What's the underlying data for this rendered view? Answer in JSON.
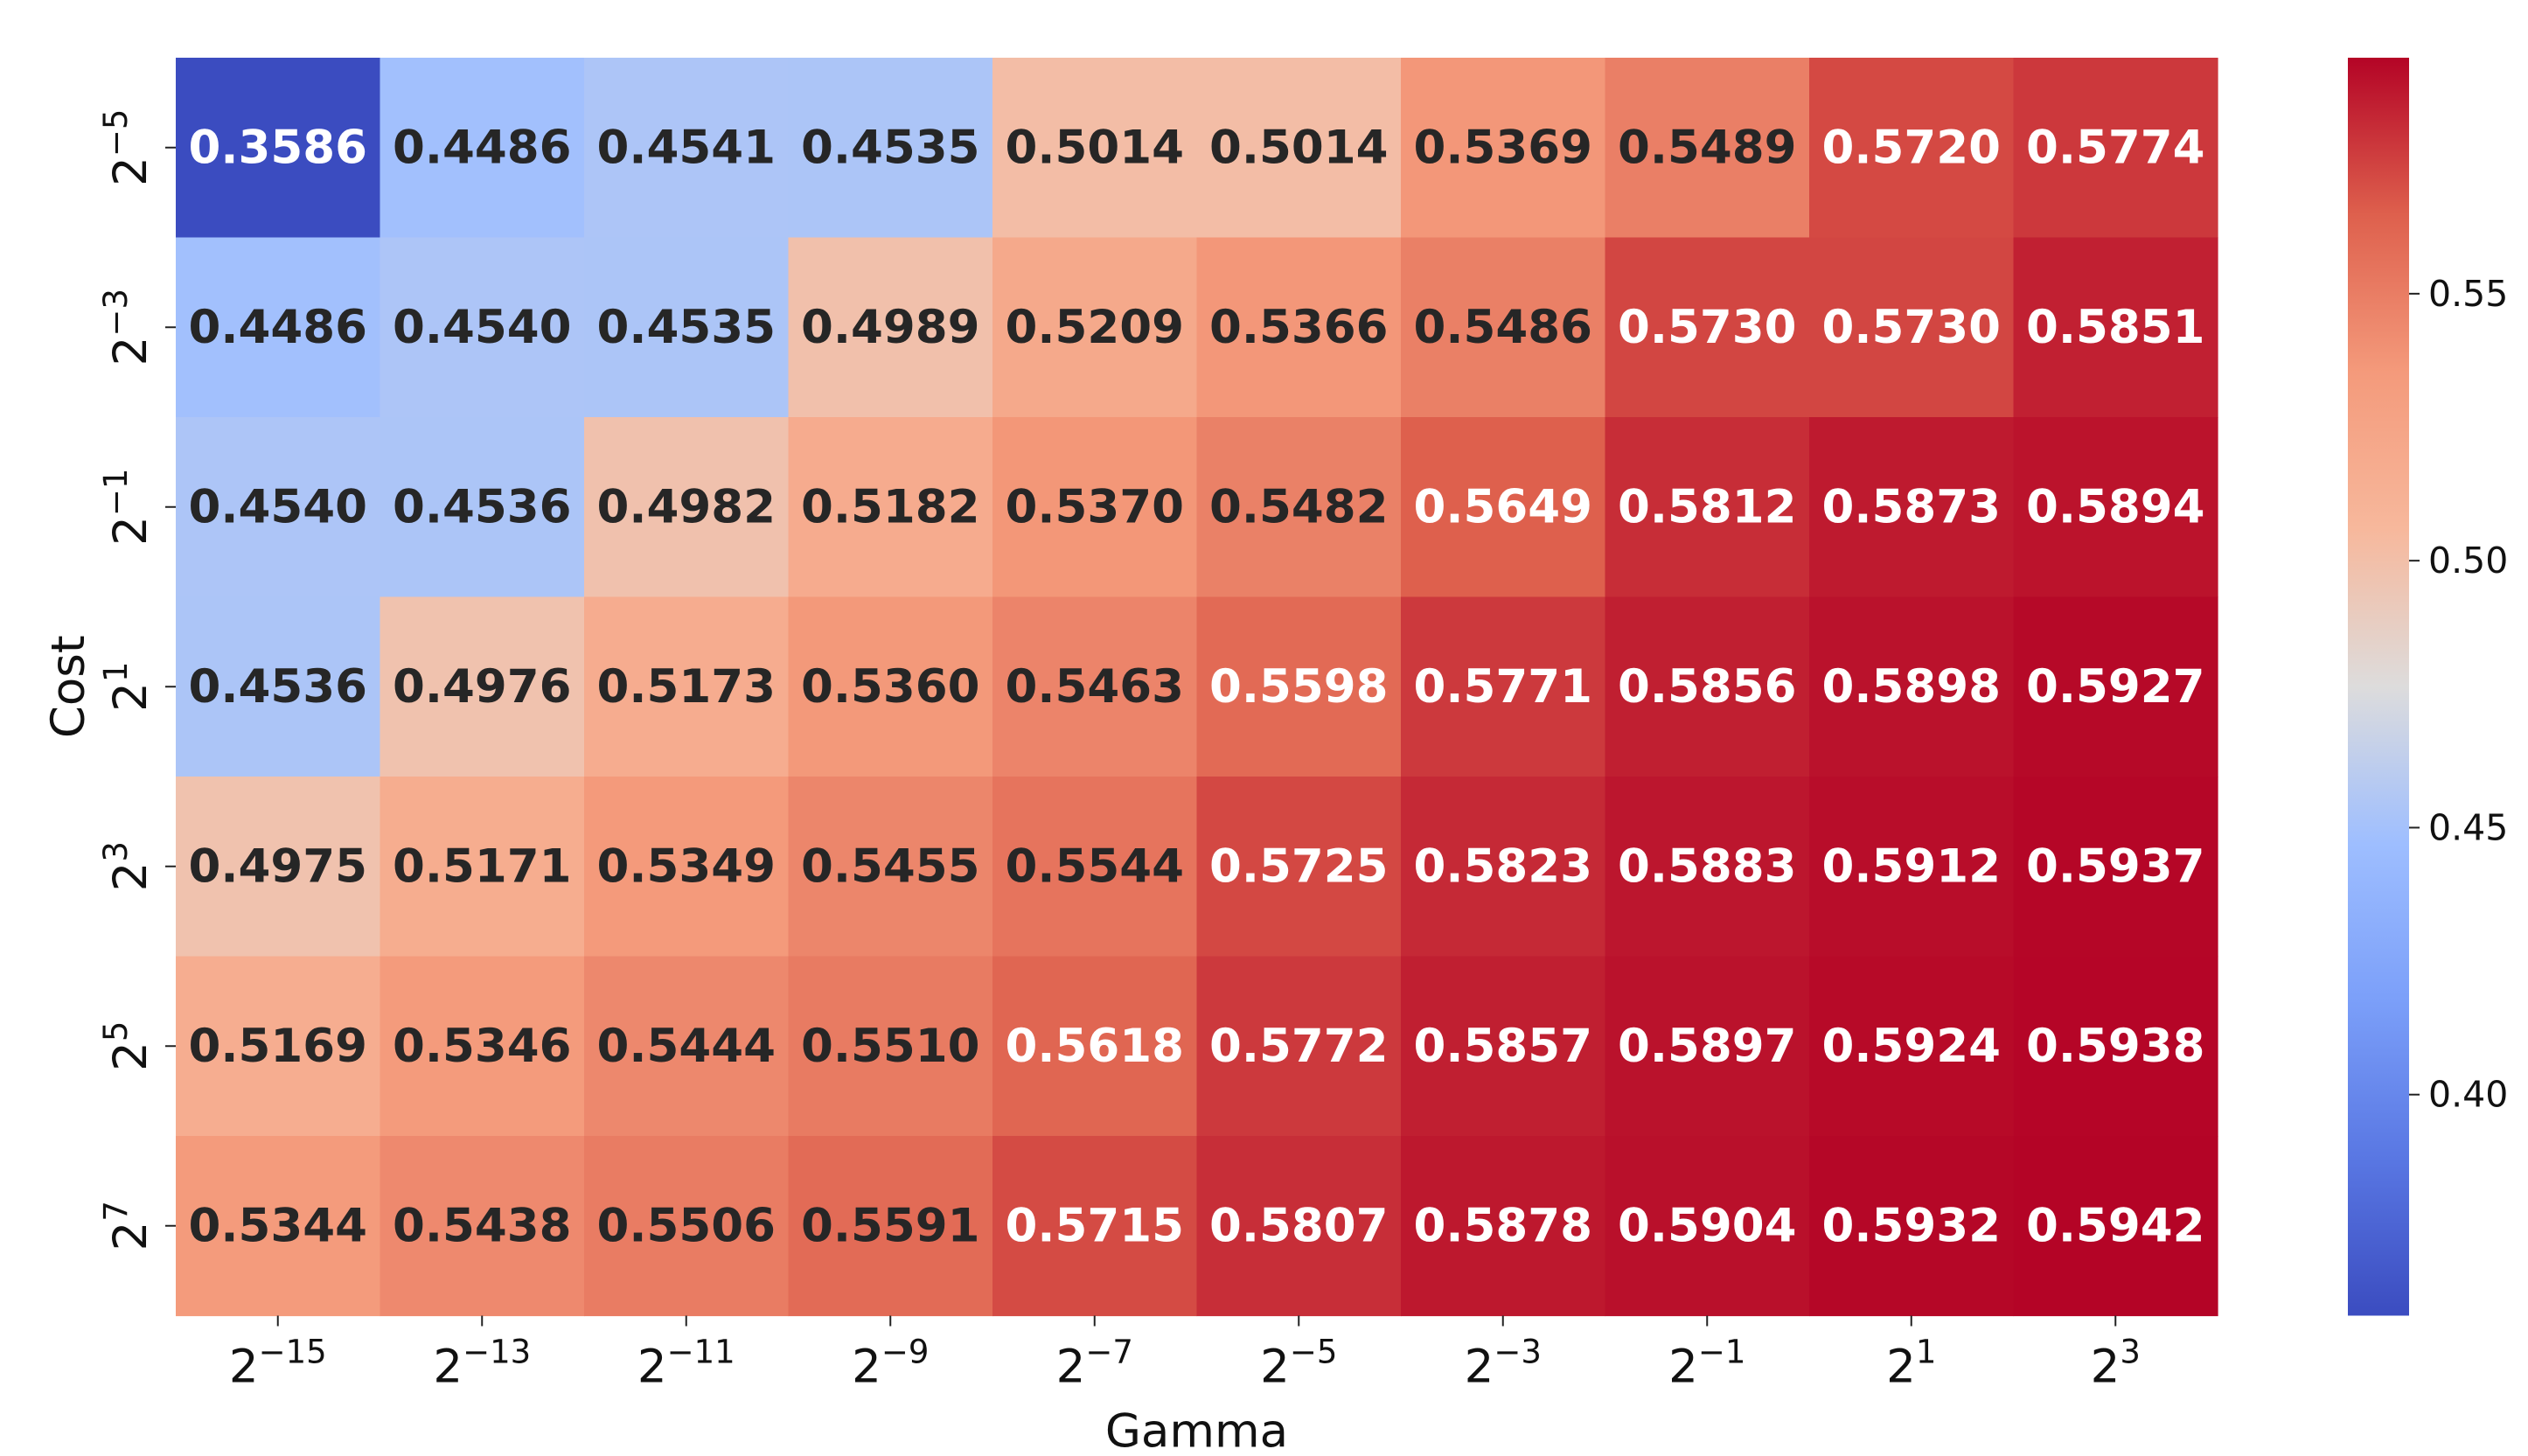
{
  "chart_data": {
    "type": "heatmap",
    "xlabel": "Gamma",
    "ylabel": "Cost",
    "x_tick_labels": [
      {
        "base": "2",
        "exp": "−15"
      },
      {
        "base": "2",
        "exp": "−13"
      },
      {
        "base": "2",
        "exp": "−11"
      },
      {
        "base": "2",
        "exp": "−9"
      },
      {
        "base": "2",
        "exp": "−7"
      },
      {
        "base": "2",
        "exp": "−5"
      },
      {
        "base": "2",
        "exp": "−3"
      },
      {
        "base": "2",
        "exp": "−1"
      },
      {
        "base": "2",
        "exp": "1"
      },
      {
        "base": "2",
        "exp": "3"
      }
    ],
    "y_tick_labels": [
      {
        "base": "2",
        "exp": "−5"
      },
      {
        "base": "2",
        "exp": "−3"
      },
      {
        "base": "2",
        "exp": "−1"
      },
      {
        "base": "2",
        "exp": "1"
      },
      {
        "base": "2",
        "exp": "3"
      },
      {
        "base": "2",
        "exp": "5"
      },
      {
        "base": "2",
        "exp": "7"
      }
    ],
    "values": [
      [
        "0.3586",
        "0.4486",
        "0.4541",
        "0.4535",
        "0.5014",
        "0.5014",
        "0.5369",
        "0.5489",
        "0.5720",
        "0.5774"
      ],
      [
        "0.4486",
        "0.4540",
        "0.4535",
        "0.4989",
        "0.5209",
        "0.5366",
        "0.5486",
        "0.5730",
        "0.5730",
        "0.5851"
      ],
      [
        "0.4540",
        "0.4536",
        "0.4982",
        "0.5182",
        "0.5370",
        "0.5482",
        "0.5649",
        "0.5812",
        "0.5873",
        "0.5894"
      ],
      [
        "0.4536",
        "0.4976",
        "0.5173",
        "0.5360",
        "0.5463",
        "0.5598",
        "0.5771",
        "0.5856",
        "0.5898",
        "0.5927"
      ],
      [
        "0.4975",
        "0.5171",
        "0.5349",
        "0.5455",
        "0.5544",
        "0.5725",
        "0.5823",
        "0.5883",
        "0.5912",
        "0.5937"
      ],
      [
        "0.5169",
        "0.5346",
        "0.5444",
        "0.5510",
        "0.5618",
        "0.5772",
        "0.5857",
        "0.5897",
        "0.5924",
        "0.5938"
      ],
      [
        "0.5344",
        "0.5438",
        "0.5506",
        "0.5591",
        "0.5715",
        "0.5807",
        "0.5878",
        "0.5904",
        "0.5932",
        "0.5942"
      ]
    ],
    "colormap": "coolwarm",
    "vmin": 0.3586,
    "vmax": 0.5942,
    "colorbar_ticks": [
      "0.40",
      "0.45",
      "0.50",
      "0.55"
    ],
    "colors": {
      "low": "#3b4cc0",
      "mid": "#dddcdc",
      "high": "#b40426",
      "text_dark": "#262626",
      "text_light": "#ffffff"
    }
  }
}
